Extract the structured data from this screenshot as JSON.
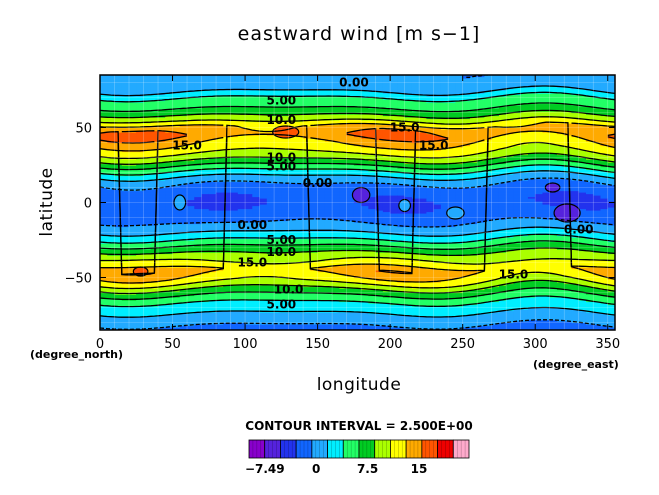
{
  "chart_data": {
    "type": "heatmap",
    "title": "eastward wind [m s−1]",
    "xlabel": "longitude",
    "ylabel": "latitude",
    "x_unit": "(degree_east)",
    "y_unit": "(degree_north)",
    "xlim": [
      0,
      355
    ],
    "ylim": [
      -85,
      85
    ],
    "x_ticks": [
      0,
      50,
      100,
      150,
      200,
      250,
      300,
      350
    ],
    "y_ticks": [
      -50,
      0,
      50
    ],
    "grid": true,
    "contour_interval_text": "CONTOUR INTERVAL = 2.500E+00",
    "levels": [
      -7.5,
      -5,
      -2.5,
      0,
      2.5,
      5,
      7.5,
      10,
      12.5,
      15,
      17.5,
      20
    ],
    "colors": [
      "#8800cc",
      "#5522dd",
      "#2233ee",
      "#1166ff",
      "#22aaff",
      "#00eeff",
      "#22ff66",
      "#00cc22",
      "#aaff00",
      "#ffff00",
      "#ffaa00",
      "#ff5500",
      "#ee0000",
      "#ffaacc"
    ],
    "colorbar_ticks": [
      {
        "value": -7.49,
        "label": "−7.49"
      },
      {
        "value": 0,
        "label": "0"
      },
      {
        "value": 7.5,
        "label": "7.5"
      },
      {
        "value": 15,
        "label": "15"
      }
    ],
    "zonal_profile": {
      "lat": [
        -85,
        -75,
        -65,
        -58,
        -52,
        -45,
        -40,
        -34,
        -28,
        -22,
        -16,
        -10,
        -5,
        0,
        5,
        10,
        15,
        20,
        25,
        30,
        35,
        40,
        45,
        50,
        55,
        60,
        65,
        70,
        75,
        82,
        85
      ],
      "u": [
        -1,
        2,
        5.5,
        9.5,
        13.5,
        16,
        13,
        10.5,
        7,
        3.5,
        0.8,
        -1,
        -2,
        -2.5,
        -2,
        -1,
        1,
        4,
        7.5,
        11,
        13.5,
        15,
        17,
        16,
        12,
        9,
        6.5,
        5,
        2,
        0.5,
        0
      ]
    },
    "contour_labels": [
      {
        "text": "0.00",
        "lon": 175,
        "lat": 80
      },
      {
        "text": "5.00",
        "lon": 125,
        "lat": 68
      },
      {
        "text": "10.0",
        "lon": 125,
        "lat": 55
      },
      {
        "text": "15.0",
        "lon": 60,
        "lat": 38
      },
      {
        "text": "15.0",
        "lon": 210,
        "lat": 50
      },
      {
        "text": "15.0",
        "lon": 230,
        "lat": 38
      },
      {
        "text": "10.0",
        "lon": 125,
        "lat": 30
      },
      {
        "text": "5.00",
        "lon": 125,
        "lat": 24
      },
      {
        "text": "0.00",
        "lon": 150,
        "lat": 13
      },
      {
        "text": "0.00",
        "lon": 105,
        "lat": -15
      },
      {
        "text": "0.00",
        "lon": 330,
        "lat": -18
      },
      {
        "text": "5.00",
        "lon": 125,
        "lat": -25
      },
      {
        "text": "10.0",
        "lon": 125,
        "lat": -33
      },
      {
        "text": "15.0",
        "lon": 105,
        "lat": -40
      },
      {
        "text": "15.0",
        "lon": 285,
        "lat": -48
      },
      {
        "text": "10.0",
        "lon": 130,
        "lat": -58
      },
      {
        "text": "5.00",
        "lon": 125,
        "lat": -68
      }
    ]
  }
}
